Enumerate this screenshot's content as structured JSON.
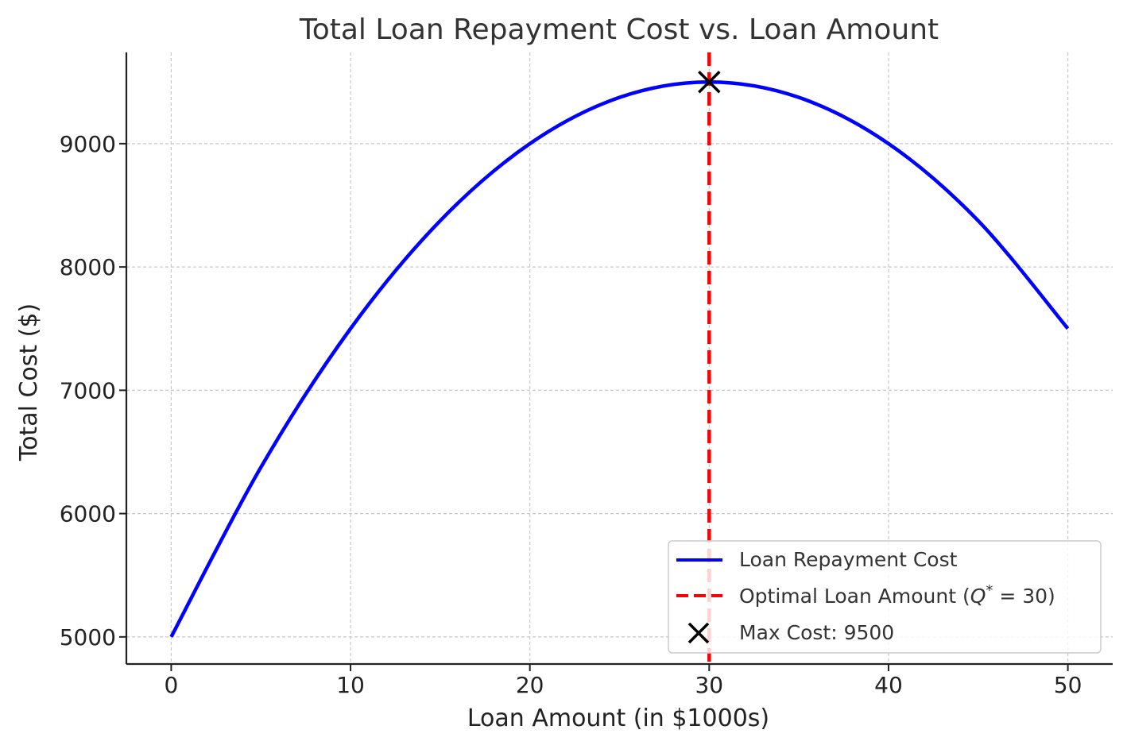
{
  "chart_data": {
    "type": "line",
    "title": "Total Loan Repayment Cost vs. Loan Amount",
    "xlabel": "Loan Amount (in $1000s)",
    "ylabel": "Total Cost ($)",
    "xlim": [
      -2.5,
      52.5
    ],
    "ylim": [
      4780,
      9740
    ],
    "xticks": [
      0,
      10,
      20,
      30,
      40,
      50
    ],
    "yticks": [
      5000,
      6000,
      7000,
      8000,
      9000
    ],
    "grid": true,
    "legend_position": "lower right",
    "series": [
      {
        "name": "Loan Repayment Cost",
        "style": "solid",
        "color": "#0000ff",
        "x": [
          0,
          5,
          10,
          15,
          20,
          25,
          30,
          35,
          40,
          45,
          50
        ],
        "y": [
          5000,
          6375,
          7500,
          8375,
          9000,
          9375,
          9500,
          9375,
          9000,
          8375,
          7500
        ]
      }
    ],
    "vline": {
      "name": "Optimal Loan Amount",
      "legend_math_var": "Q",
      "legend_math_sup": "*",
      "legend_math_rest": " = 30)",
      "x": 30,
      "color": "#ff0000",
      "style": "dashed"
    },
    "marker": {
      "name": "Max Cost: 9500",
      "x": 30,
      "y": 9500,
      "symbol": "x",
      "color": "#000000"
    }
  }
}
